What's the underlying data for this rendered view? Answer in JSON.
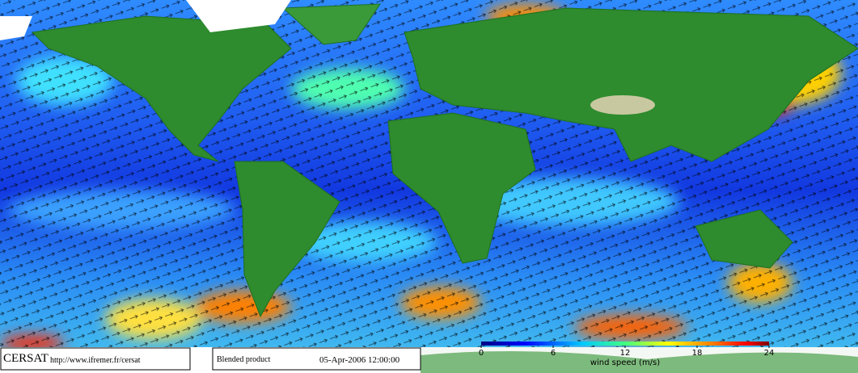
{
  "footer": {
    "brand": "CERSAT",
    "url": "http://www.ifremer.fr/cersat",
    "product": "Blended product",
    "timestamp": "05-Apr-2006 12:00:00"
  },
  "colorbar": {
    "label": "wind speed (m/s)",
    "lim": [
      0,
      24
    ],
    "ticks": [
      0,
      6,
      12,
      18,
      24
    ]
  }
}
